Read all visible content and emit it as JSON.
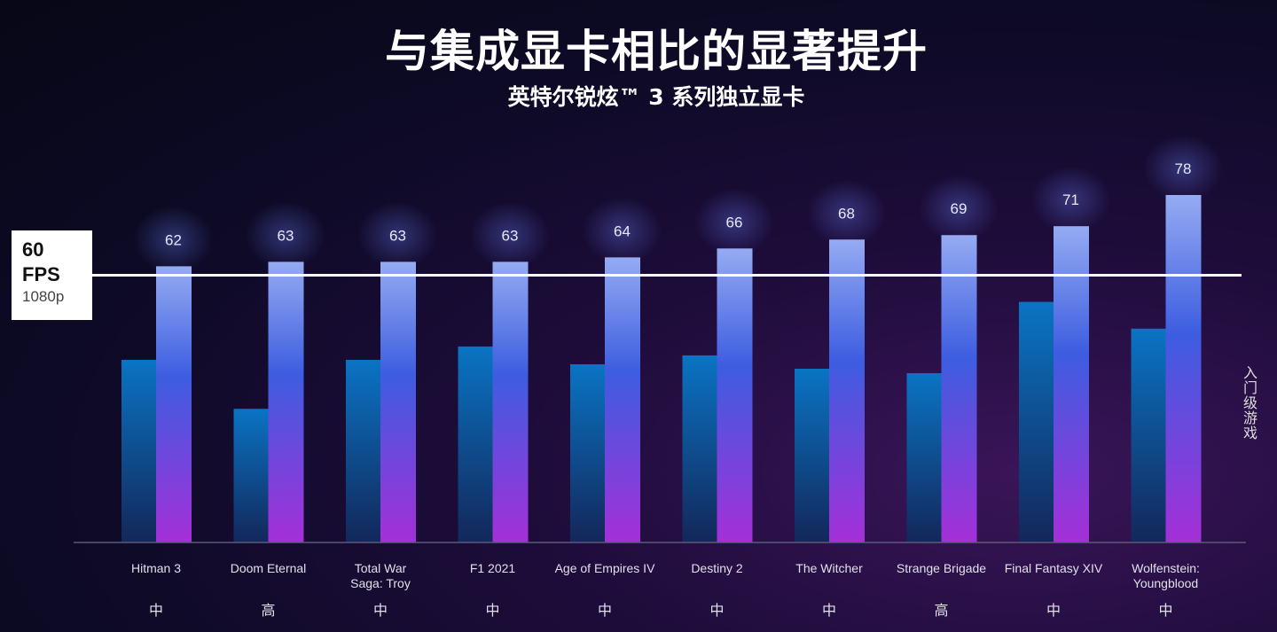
{
  "title": "与集成显卡相比的显著提升",
  "subtitle": "英特尔锐炫™ 3 系列独立显卡",
  "reference": {
    "value": "60",
    "unit": "FPS",
    "resolution": "1080p"
  },
  "side_label": "入门级游戏",
  "colors": {
    "integrated_bar": "#0a7fc8",
    "arc_bar_top": "#90a8f0",
    "arc_bar_mid": "#3b5ee0",
    "arc_bar_bottom": "#a22ed6",
    "reference_line": "#ffffff"
  },
  "chart_data": {
    "type": "bar",
    "categories": [
      "Hitman 3",
      "Doom Eternal",
      "Total War Saga: Troy",
      "F1 2021",
      "Age of Empires IV",
      "Destiny 2",
      "The Witcher",
      "Strange Brigade",
      "Final Fantasy XIV",
      "Wolfenstein: Youngblood"
    ],
    "category_lines": [
      [
        "Hitman 3"
      ],
      [
        "Doom Eternal"
      ],
      [
        "Total War",
        "Saga: Troy"
      ],
      [
        "F1 2021"
      ],
      [
        "Age of Empires IV"
      ],
      [
        "Destiny 2"
      ],
      [
        "The Witcher"
      ],
      [
        "Strange Brigade"
      ],
      [
        "Final Fantasy XIV"
      ],
      [
        "Wolfenstein:",
        "Youngblood"
      ]
    ],
    "settings": [
      "中",
      "高",
      "中",
      "中",
      "中",
      "中",
      "中",
      "高",
      "中",
      "中"
    ],
    "series": [
      {
        "values": [
          41,
          30,
          41,
          44,
          40,
          42,
          39,
          38,
          54,
          48
        ]
      },
      {
        "values": [
          62,
          63,
          63,
          63,
          64,
          66,
          68,
          69,
          71,
          78
        ]
      }
    ],
    "reference_line": 60,
    "ylim": [
      0,
      78
    ]
  }
}
